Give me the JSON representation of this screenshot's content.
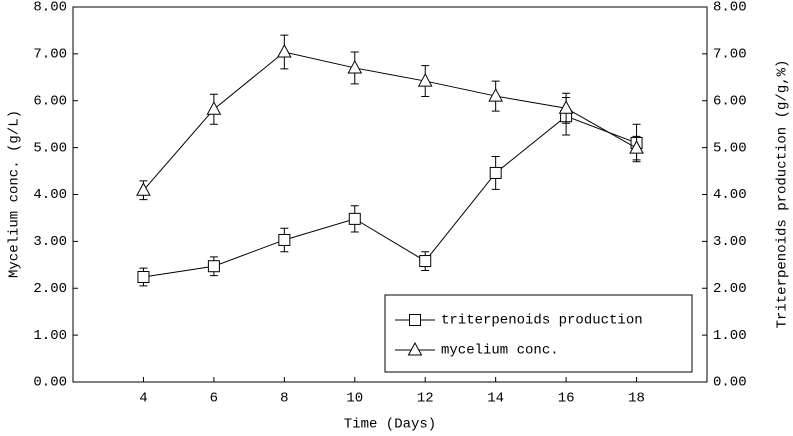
{
  "chart_data": {
    "type": "line",
    "xlabel": "Time (Days)",
    "ylabel": "Mycelium conc. (g/L)",
    "y2label": "Triterpenoids production (g/g,%)",
    "x": [
      4,
      6,
      8,
      10,
      12,
      14,
      16,
      18
    ],
    "xlim": [
      2,
      20
    ],
    "xticks": [
      4,
      6,
      8,
      10,
      12,
      14,
      16,
      18
    ],
    "ylim": [
      0,
      8
    ],
    "yticks": [
      {
        "value": 0,
        "label": "0.00"
      },
      {
        "value": 1,
        "label": "1.00"
      },
      {
        "value": 2,
        "label": "2.00"
      },
      {
        "value": 3,
        "label": "3.00"
      },
      {
        "value": 4,
        "label": "4.00"
      },
      {
        "value": 5,
        "label": "5.00"
      },
      {
        "value": 6,
        "label": "6.00"
      },
      {
        "value": 7,
        "label": "7.00"
      },
      {
        "value": 8,
        "label": "8.00"
      }
    ],
    "y2lim": [
      0,
      8
    ],
    "y2ticks": [
      {
        "value": 0,
        "label": "0.00"
      },
      {
        "value": 1,
        "label": "1.00"
      },
      {
        "value": 2,
        "label": "2.00"
      },
      {
        "value": 3,
        "label": "3.00"
      },
      {
        "value": 4,
        "label": "4.00"
      },
      {
        "value": 5,
        "label": "5.00"
      },
      {
        "value": 6,
        "label": "6.00"
      },
      {
        "value": 7,
        "label": "7.00"
      },
      {
        "value": 8,
        "label": "8.00"
      }
    ],
    "legend": "lower right",
    "series": [
      {
        "name": "triterpenoids production",
        "color": "#000000",
        "marker": "square",
        "axis": "y2",
        "values": [
          2.24,
          2.47,
          3.03,
          3.48,
          2.58,
          4.46,
          5.67,
          5.1
        ],
        "errors": [
          0.19,
          0.2,
          0.25,
          0.28,
          0.2,
          0.35,
          0.4,
          0.4
        ]
      },
      {
        "name": "mycelium conc.",
        "color": "#000000",
        "marker": "triangle",
        "values": [
          4.09,
          5.82,
          7.04,
          6.7,
          6.42,
          6.1,
          5.84,
          4.99
        ],
        "errors": [
          0.2,
          0.32,
          0.36,
          0.34,
          0.33,
          0.32,
          0.32,
          0.25
        ]
      }
    ]
  }
}
